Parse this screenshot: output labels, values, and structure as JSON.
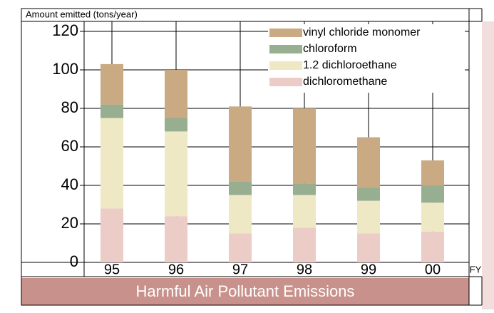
{
  "chart_data": {
    "type": "stacked_bar",
    "title": "Harmful Air Pollutant Emissions",
    "y_label": "Amount emitted (tons/year)",
    "x_label": "FY",
    "categories": [
      "95",
      "96",
      "97",
      "98",
      "99",
      "00"
    ],
    "series": [
      {
        "name": "dichloromethane",
        "color": "#ecccc6",
        "values": [
          28,
          24,
          15,
          18,
          15,
          16
        ]
      },
      {
        "name": "1.2 dichloroethane",
        "color": "#efe8c4",
        "values": [
          47,
          44,
          20,
          17,
          17,
          15
        ]
      },
      {
        "name": "chloroform",
        "color": "#98ae90",
        "values": [
          7,
          7,
          7,
          6,
          7,
          9
        ]
      },
      {
        "name": "vinyl chloride monomer",
        "color": "#c9aa82",
        "values": [
          21,
          25,
          39,
          39,
          26,
          13
        ]
      }
    ],
    "ylim": [
      0,
      120
    ],
    "yticks": [
      0,
      20,
      40,
      60,
      80,
      100,
      120
    ],
    "grid": true
  }
}
